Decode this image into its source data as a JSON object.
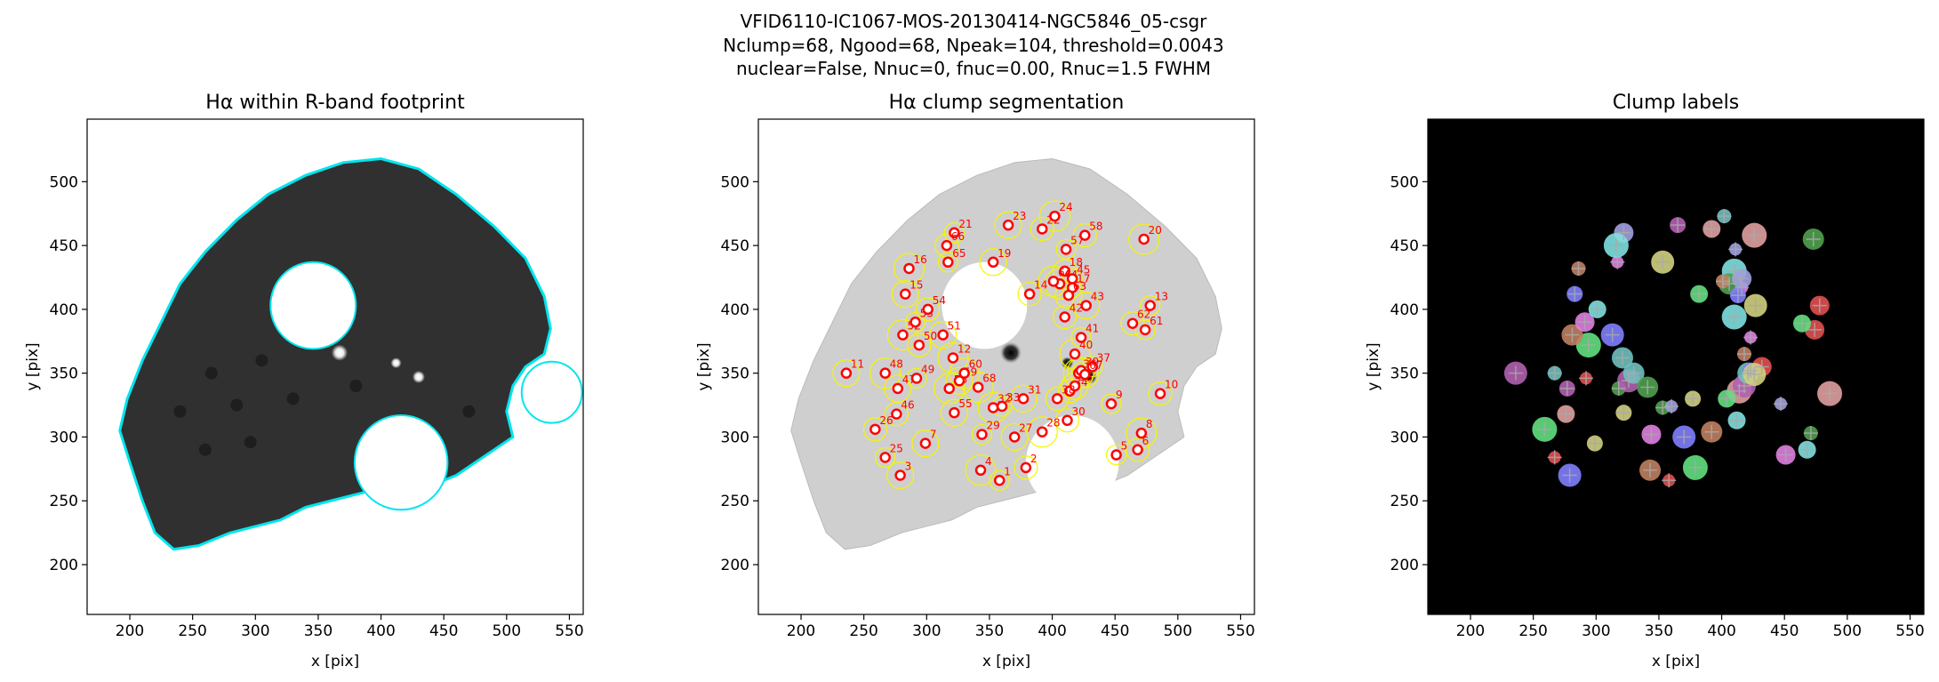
{
  "suptitle": [
    "VFID6110-IC1067-MOS-20130414-NGC5846_05-csgr",
    "Nclump=68, Ngood=68, Npeak=104, threshold=0.0043",
    "nuclear=False, Nnuc=0, fnuc=0.00, Rnuc=1.5 FWHM"
  ],
  "chart_data": [
    {
      "type": "image",
      "style": "halpha",
      "title": "Hα within R-band footprint",
      "xlabel": "x [pix]",
      "ylabel": "y [pix]",
      "xlim": [
        166,
        561
      ],
      "ylim": [
        161,
        549
      ],
      "xticks": [
        200,
        250,
        300,
        350,
        400,
        450,
        500,
        550
      ],
      "yticks": [
        200,
        250,
        300,
        350,
        400,
        450,
        500
      ],
      "color": "#00e5ee"
    },
    {
      "type": "image",
      "style": "segmentation",
      "title": "Hα clump segmentation",
      "xlabel": "x [pix]",
      "ylabel": "y [pix]",
      "xlim": [
        166,
        561
      ],
      "ylim": [
        161,
        549
      ],
      "xticks": [
        200,
        250,
        300,
        350,
        400,
        450,
        500,
        550
      ],
      "yticks": [
        200,
        250,
        300,
        350,
        400,
        450,
        500
      ],
      "color": "#ff0000",
      "clumps": [
        {
          "label": "1",
          "x": 358,
          "y": 266
        },
        {
          "label": "2",
          "x": 379,
          "y": 276
        },
        {
          "label": "3",
          "x": 279,
          "y": 270
        },
        {
          "label": "4",
          "x": 343,
          "y": 274
        },
        {
          "label": "5",
          "x": 451,
          "y": 286
        },
        {
          "label": "6",
          "x": 468,
          "y": 290
        },
        {
          "label": "7",
          "x": 299,
          "y": 295
        },
        {
          "label": "8",
          "x": 471,
          "y": 303
        },
        {
          "label": "9",
          "x": 447,
          "y": 326
        },
        {
          "label": "10",
          "x": 486,
          "y": 334
        },
        {
          "label": "11",
          "x": 236,
          "y": 350
        },
        {
          "label": "12",
          "x": 321,
          "y": 362
        },
        {
          "label": "13",
          "x": 478,
          "y": 403
        },
        {
          "label": "14",
          "x": 382,
          "y": 412
        },
        {
          "label": "15",
          "x": 283,
          "y": 412
        },
        {
          "label": "16",
          "x": 286,
          "y": 432
        },
        {
          "label": "17",
          "x": 416,
          "y": 417
        },
        {
          "label": "18",
          "x": 410,
          "y": 430
        },
        {
          "label": "19",
          "x": 353,
          "y": 437
        },
        {
          "label": "20",
          "x": 473,
          "y": 455
        },
        {
          "label": "21",
          "x": 322,
          "y": 460
        },
        {
          "label": "22",
          "x": 392,
          "y": 463
        },
        {
          "label": "23",
          "x": 365,
          "y": 466
        },
        {
          "label": "24",
          "x": 402,
          "y": 473
        },
        {
          "label": "25",
          "x": 267,
          "y": 284
        },
        {
          "label": "26",
          "x": 259,
          "y": 306
        },
        {
          "label": "27",
          "x": 370,
          "y": 300
        },
        {
          "label": "28",
          "x": 392,
          "y": 304
        },
        {
          "label": "29",
          "x": 344,
          "y": 302
        },
        {
          "label": "30",
          "x": 412,
          "y": 313
        },
        {
          "label": "31",
          "x": 377,
          "y": 330
        },
        {
          "label": "32",
          "x": 353,
          "y": 323
        },
        {
          "label": "33",
          "x": 360,
          "y": 324
        },
        {
          "label": "34",
          "x": 414,
          "y": 336
        },
        {
          "label": "35",
          "x": 418,
          "y": 340
        },
        {
          "label": "36",
          "x": 421,
          "y": 350
        },
        {
          "label": "37",
          "x": 432,
          "y": 355
        },
        {
          "label": "38",
          "x": 404,
          "y": 330
        },
        {
          "label": "39",
          "x": 423,
          "y": 352
        },
        {
          "label": "40",
          "x": 418,
          "y": 365
        },
        {
          "label": "41",
          "x": 423,
          "y": 378
        },
        {
          "label": "42",
          "x": 410,
          "y": 394
        },
        {
          "label": "43",
          "x": 427,
          "y": 403
        },
        {
          "label": "44",
          "x": 406,
          "y": 420
        },
        {
          "label": "45",
          "x": 416,
          "y": 424
        },
        {
          "label": "46",
          "x": 276,
          "y": 318
        },
        {
          "label": "47",
          "x": 277,
          "y": 338
        },
        {
          "label": "48",
          "x": 267,
          "y": 350
        },
        {
          "label": "49",
          "x": 292,
          "y": 346
        },
        {
          "label": "50",
          "x": 294,
          "y": 372
        },
        {
          "label": "51",
          "x": 313,
          "y": 380
        },
        {
          "label": "52",
          "x": 281,
          "y": 380
        },
        {
          "label": "53",
          "x": 291,
          "y": 390
        },
        {
          "label": "54",
          "x": 301,
          "y": 400
        },
        {
          "label": "55",
          "x": 322,
          "y": 319
        },
        {
          "label": "56",
          "x": 318,
          "y": 338
        },
        {
          "label": "57",
          "x": 411,
          "y": 447
        },
        {
          "label": "58",
          "x": 426,
          "y": 458
        },
        {
          "label": "59",
          "x": 326,
          "y": 344
        },
        {
          "label": "60",
          "x": 330,
          "y": 350
        },
        {
          "label": "61",
          "x": 474,
          "y": 384
        },
        {
          "label": "62",
          "x": 464,
          "y": 389
        },
        {
          "label": "63",
          "x": 413,
          "y": 411
        },
        {
          "label": "64",
          "x": 401,
          "y": 422
        },
        {
          "label": "65",
          "x": 317,
          "y": 437
        },
        {
          "label": "66",
          "x": 316,
          "y": 450
        },
        {
          "label": "67",
          "x": 426,
          "y": 349
        },
        {
          "label": "68",
          "x": 341,
          "y": 339
        }
      ]
    },
    {
      "type": "image",
      "style": "labels",
      "title": "Clump labels",
      "xlabel": "x [pix]",
      "ylabel": "y [pix]",
      "xlim": [
        166,
        561
      ],
      "ylim": [
        161,
        549
      ],
      "xticks": [
        200,
        250,
        300,
        350,
        400,
        450,
        500,
        550
      ],
      "yticks": [
        200,
        250,
        300,
        350,
        400,
        450,
        500
      ],
      "colors": [
        "#e05050",
        "#60e080",
        "#8080ff",
        "#c08060",
        "#e080e0",
        "#80e0e0",
        "#d0d080",
        "#50a050",
        "#a0a0e0",
        "#e0a0a0",
        "#b060b0",
        "#70c0c0"
      ]
    }
  ]
}
